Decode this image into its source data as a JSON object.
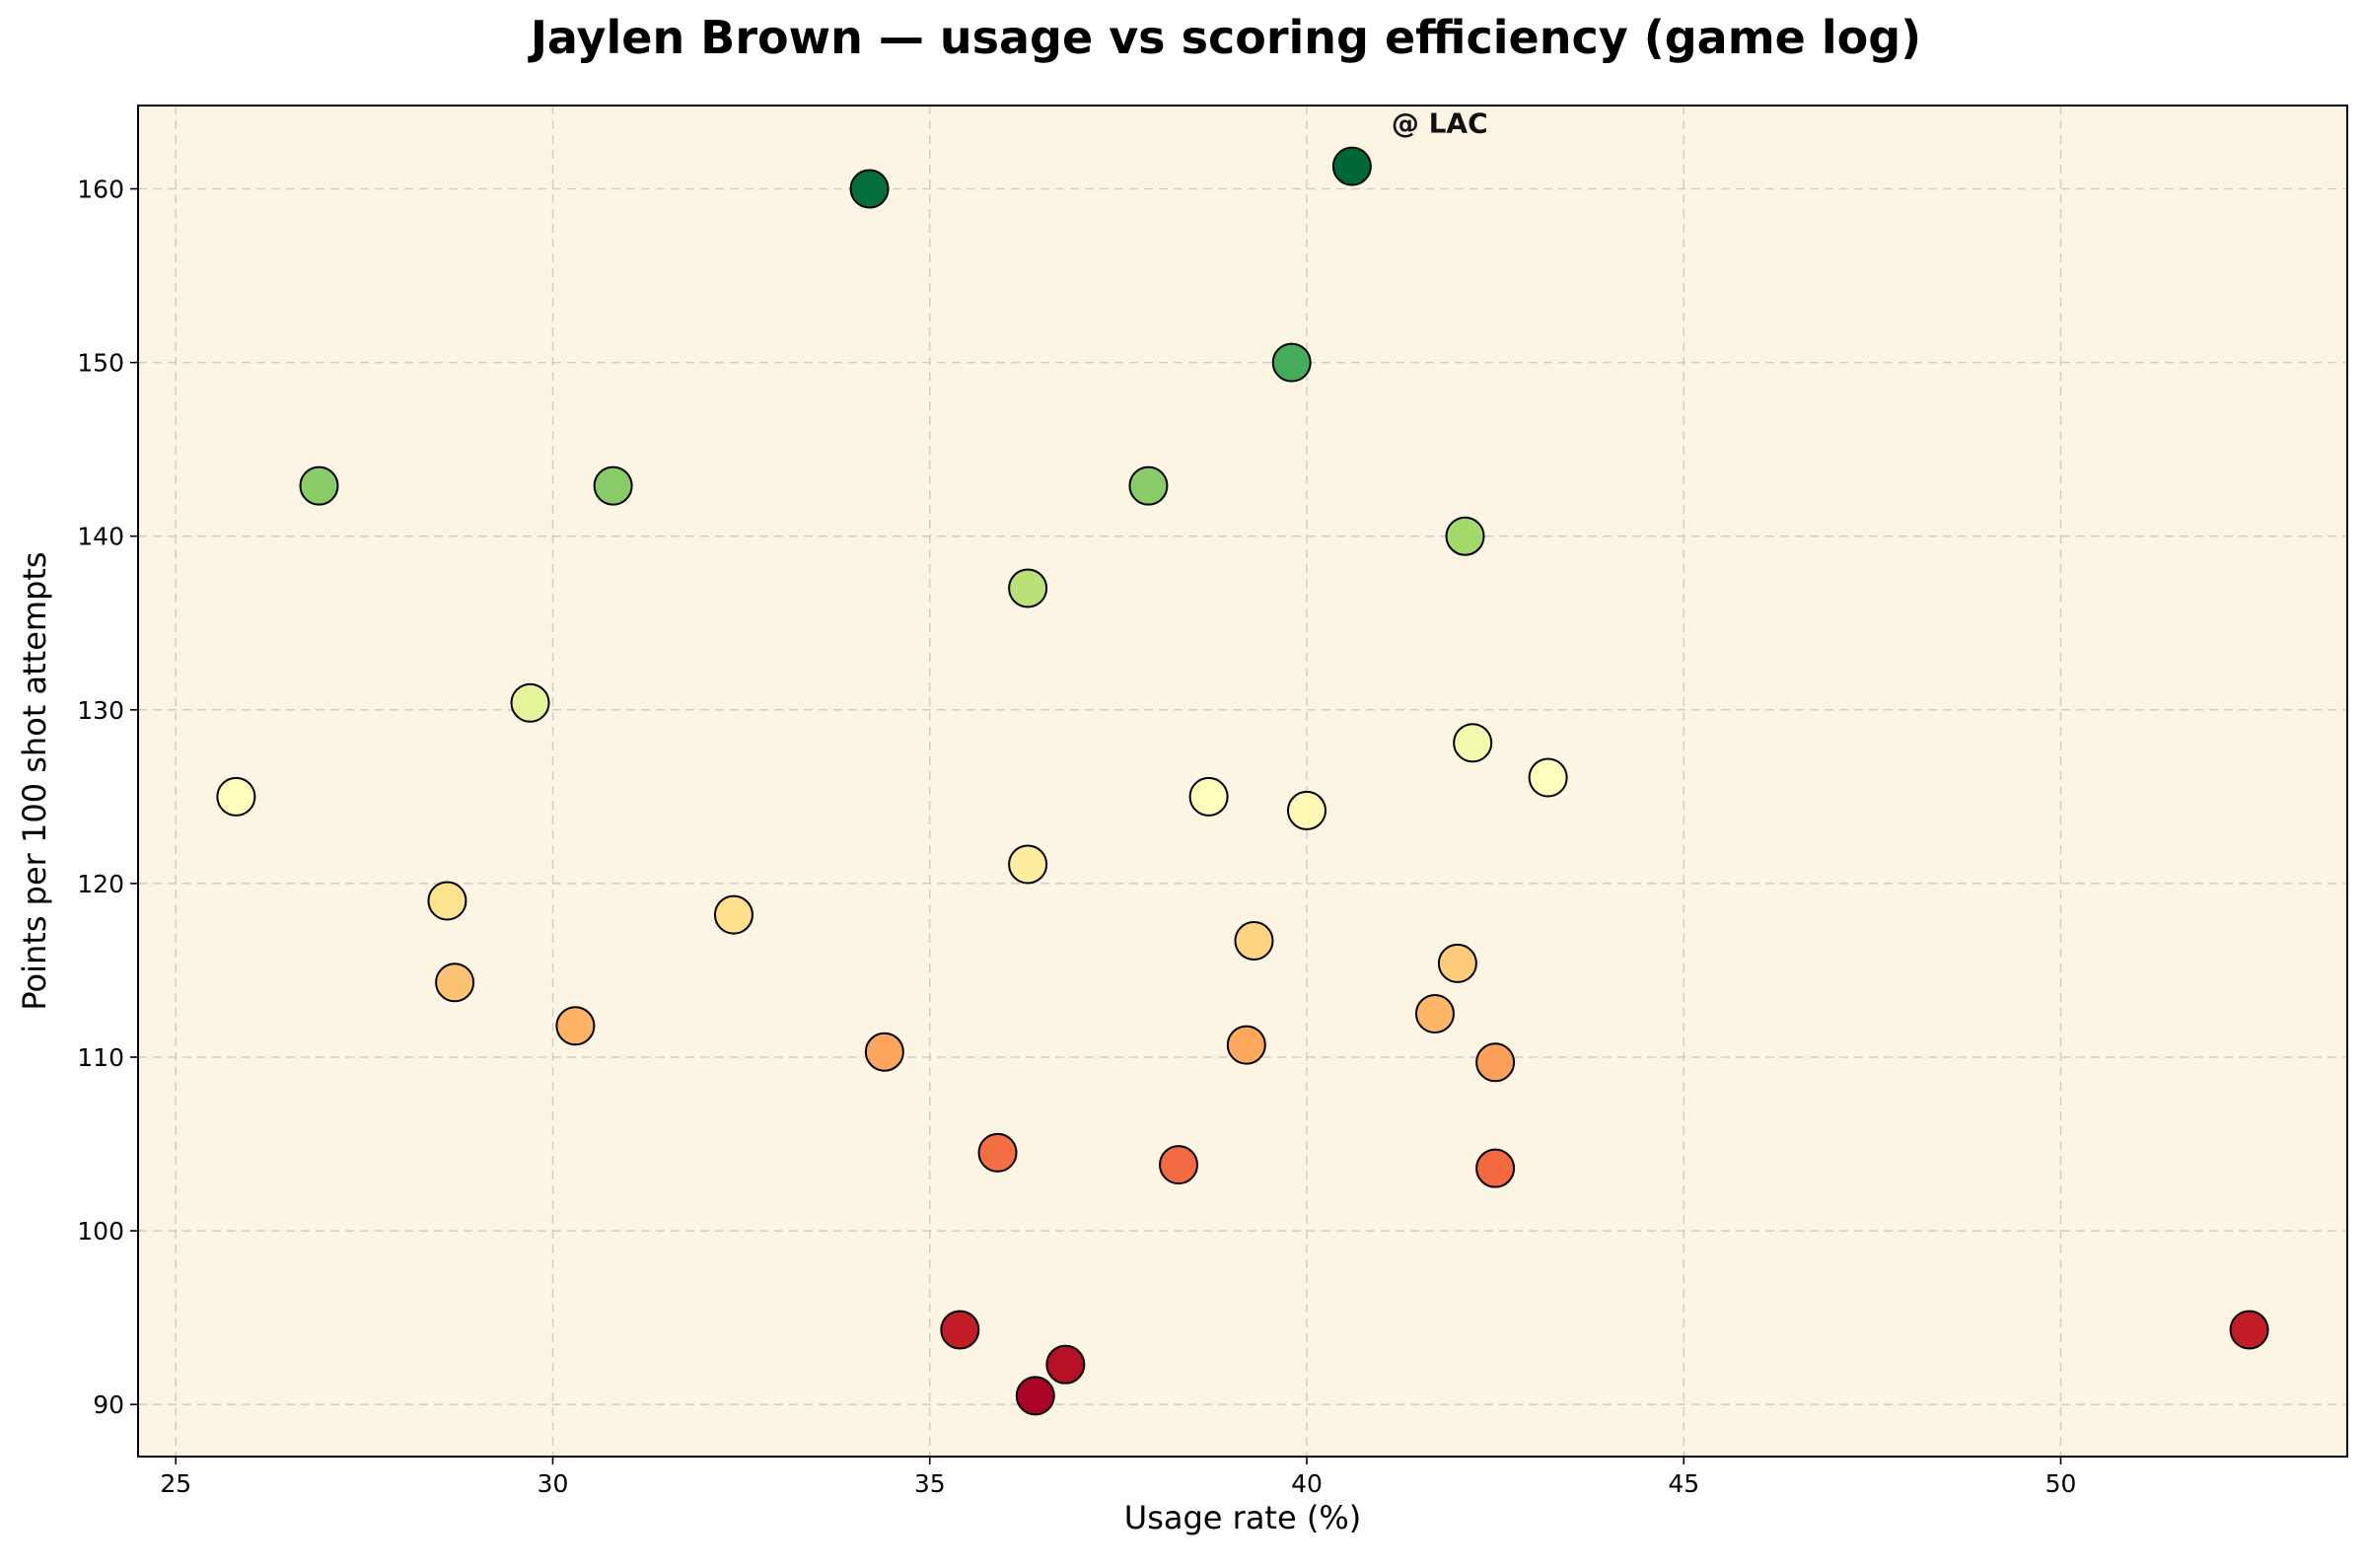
{
  "chart_data": {
    "type": "scatter",
    "title": "Jaylen Brown — usage vs scoring efficiency (game log)",
    "xlabel": "Usage rate (%)",
    "ylabel": "Points per 100 shot attempts",
    "xlim": [
      24.5,
      53.8
    ],
    "ylim": [
      87,
      164.8
    ],
    "xticks": [
      25,
      30,
      35,
      40,
      45,
      50
    ],
    "yticks": [
      90,
      100,
      110,
      120,
      130,
      140,
      150,
      160
    ],
    "grid": true,
    "background_color": "#fdf5e4",
    "colormap": "RdYlGn",
    "color_range": [
      90,
      161
    ],
    "annotation": {
      "text": "@ LAC",
      "x": 40.6,
      "y": 161.3
    },
    "points": [
      {
        "x": 25.8,
        "y": 125.0
      },
      {
        "x": 26.9,
        "y": 142.9
      },
      {
        "x": 28.6,
        "y": 119.0
      },
      {
        "x": 28.7,
        "y": 114.3
      },
      {
        "x": 29.7,
        "y": 130.4
      },
      {
        "x": 30.3,
        "y": 111.8
      },
      {
        "x": 30.8,
        "y": 142.9
      },
      {
        "x": 32.4,
        "y": 118.2
      },
      {
        "x": 34.2,
        "y": 160.0
      },
      {
        "x": 34.4,
        "y": 110.3
      },
      {
        "x": 35.4,
        "y": 94.3
      },
      {
        "x": 35.9,
        "y": 104.5
      },
      {
        "x": 36.3,
        "y": 137.0
      },
      {
        "x": 36.3,
        "y": 121.1
      },
      {
        "x": 36.4,
        "y": 90.5
      },
      {
        "x": 36.8,
        "y": 92.3
      },
      {
        "x": 37.9,
        "y": 142.9
      },
      {
        "x": 38.3,
        "y": 103.8
      },
      {
        "x": 38.7,
        "y": 125.0
      },
      {
        "x": 39.2,
        "y": 110.7
      },
      {
        "x": 39.3,
        "y": 116.7
      },
      {
        "x": 39.8,
        "y": 150.0
      },
      {
        "x": 40.0,
        "y": 124.2
      },
      {
        "x": 40.6,
        "y": 161.3
      },
      {
        "x": 41.7,
        "y": 112.5
      },
      {
        "x": 42.0,
        "y": 115.4
      },
      {
        "x": 42.1,
        "y": 140.0
      },
      {
        "x": 42.2,
        "y": 128.1
      },
      {
        "x": 42.5,
        "y": 109.7
      },
      {
        "x": 42.5,
        "y": 103.6
      },
      {
        "x": 43.2,
        "y": 126.1
      },
      {
        "x": 52.5,
        "y": 94.3
      }
    ]
  }
}
